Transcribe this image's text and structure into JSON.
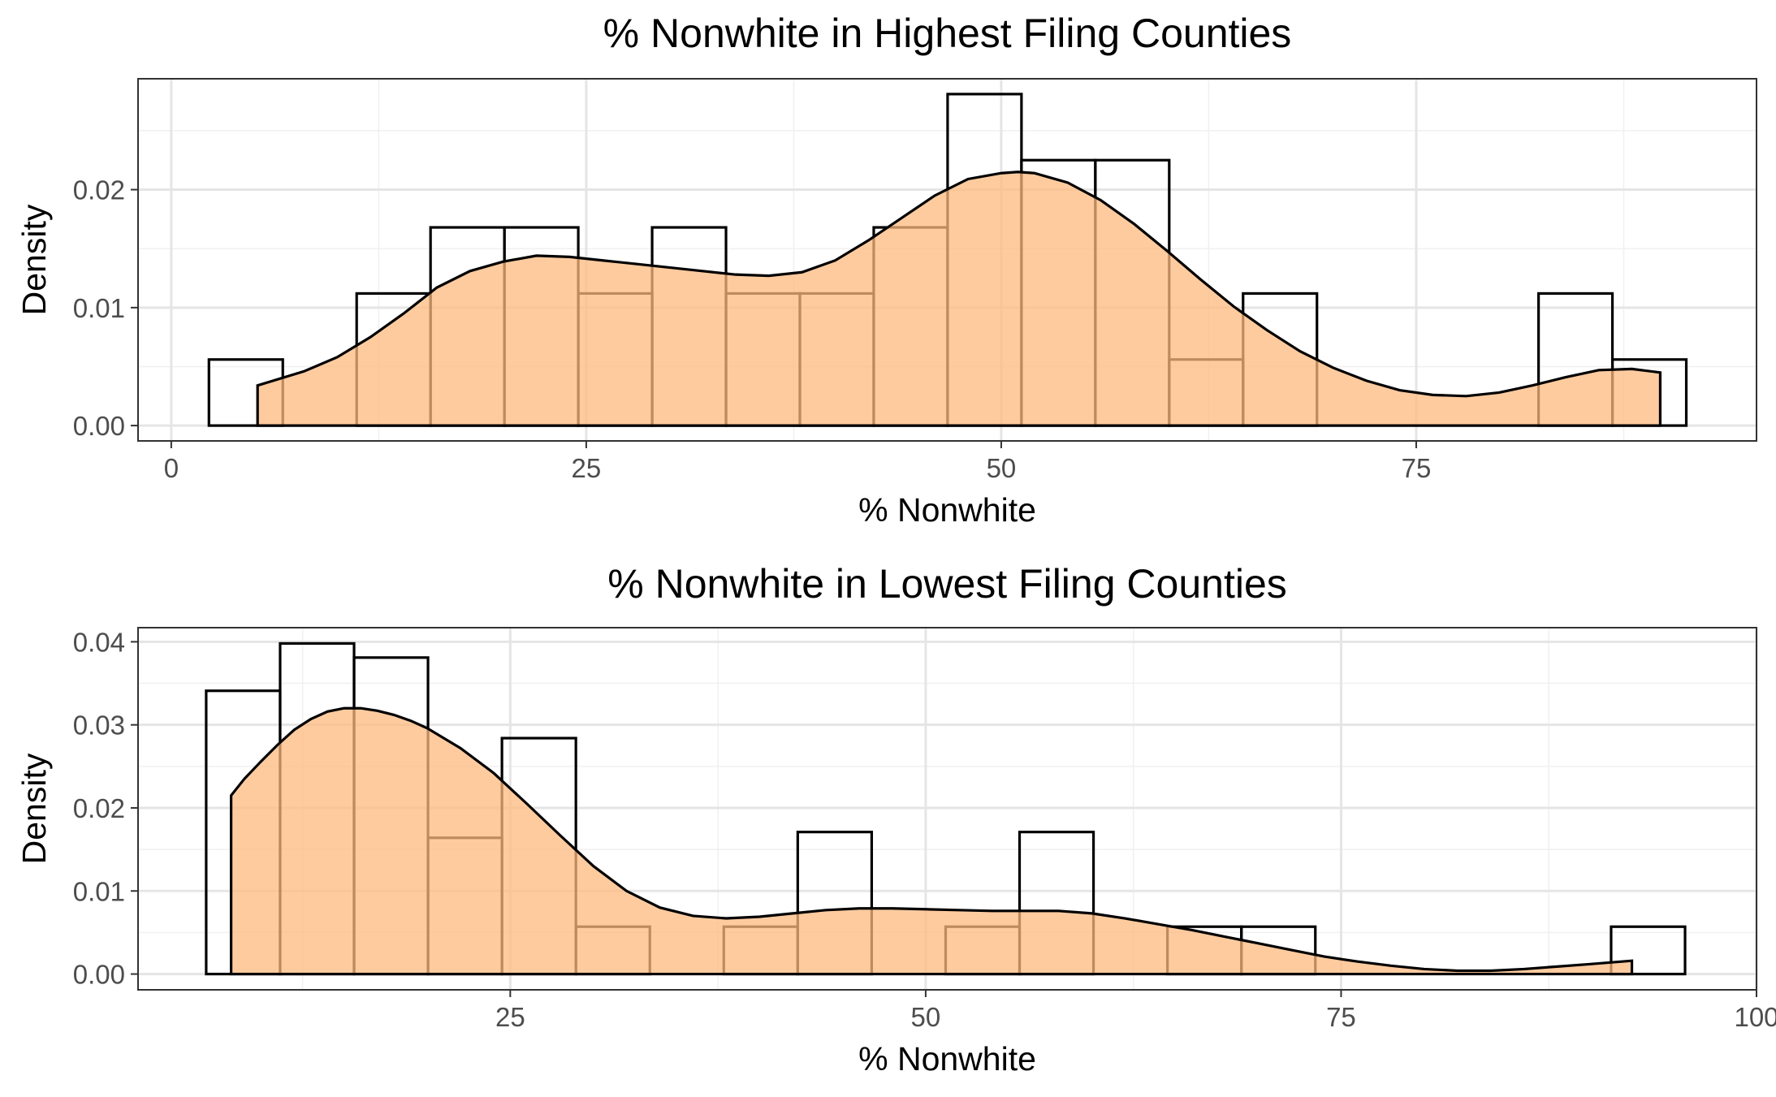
{
  "chart_data": [
    {
      "type": "histogram+density",
      "title": "% Nonwhite in Highest Filing Counties",
      "xlabel": "% Nonwhite",
      "ylabel": "Density",
      "xlim": [
        -2.0,
        95.5
      ],
      "ylim": [
        -0.0013,
        0.0294
      ],
      "xticks": [
        0,
        25,
        50,
        75
      ],
      "xtick_labels": [
        "0",
        "25",
        "50",
        "75"
      ],
      "yticks": [
        0.0,
        0.01,
        0.02
      ],
      "ytick_labels": [
        "0.00",
        "0.01",
        "0.02"
      ],
      "grid": true,
      "bin_width": 4.45,
      "bins": [
        {
          "x0": 2.27,
          "x1": 6.72,
          "density": 0.0056
        },
        {
          "x0": 6.72,
          "x1": 11.17,
          "density": 0.0
        },
        {
          "x0": 11.17,
          "x1": 15.62,
          "density": 0.0112
        },
        {
          "x0": 15.62,
          "x1": 20.07,
          "density": 0.0168
        },
        {
          "x0": 20.07,
          "x1": 24.52,
          "density": 0.0168
        },
        {
          "x0": 24.52,
          "x1": 28.97,
          "density": 0.0112
        },
        {
          "x0": 28.97,
          "x1": 33.42,
          "density": 0.0168
        },
        {
          "x0": 33.42,
          "x1": 37.87,
          "density": 0.0112
        },
        {
          "x0": 37.87,
          "x1": 42.32,
          "density": 0.0112
        },
        {
          "x0": 42.32,
          "x1": 46.77,
          "density": 0.0168
        },
        {
          "x0": 46.77,
          "x1": 51.22,
          "density": 0.0281
        },
        {
          "x0": 51.22,
          "x1": 55.67,
          "density": 0.0225
        },
        {
          "x0": 55.67,
          "x1": 60.12,
          "density": 0.0225
        },
        {
          "x0": 60.12,
          "x1": 64.57,
          "density": 0.0056
        },
        {
          "x0": 64.57,
          "x1": 69.02,
          "density": 0.0112
        },
        {
          "x0": 69.02,
          "x1": 73.47,
          "density": 0.0
        },
        {
          "x0": 73.47,
          "x1": 77.92,
          "density": 0.0
        },
        {
          "x0": 77.92,
          "x1": 82.37,
          "density": 0.0
        },
        {
          "x0": 82.37,
          "x1": 86.82,
          "density": 0.0112
        },
        {
          "x0": 86.82,
          "x1": 91.27,
          "density": 0.0056
        }
      ],
      "density_curve": {
        "x": [
          5.2,
          8,
          10,
          12,
          14,
          16,
          18,
          20,
          22,
          24,
          26,
          28,
          30,
          32,
          34,
          36,
          38,
          40,
          42,
          44,
          46,
          48,
          50,
          51,
          52,
          54,
          56,
          58,
          60,
          62,
          64,
          66,
          68,
          70,
          72,
          74,
          76,
          78,
          80,
          82,
          84,
          86,
          88,
          89.7
        ],
        "y": [
          0.0034,
          0.0046,
          0.0058,
          0.0075,
          0.0095,
          0.0117,
          0.0131,
          0.0139,
          0.0144,
          0.0143,
          0.014,
          0.0137,
          0.0134,
          0.0131,
          0.0128,
          0.0127,
          0.013,
          0.014,
          0.0157,
          0.0176,
          0.0195,
          0.0209,
          0.0214,
          0.0215,
          0.0214,
          0.0206,
          0.0191,
          0.0171,
          0.0148,
          0.0124,
          0.0101,
          0.0081,
          0.0063,
          0.0049,
          0.0038,
          0.003,
          0.0026,
          0.0025,
          0.0028,
          0.0034,
          0.0041,
          0.0047,
          0.0048,
          0.0045
        ]
      }
    },
    {
      "type": "histogram+density",
      "title": "% Nonwhite in Lowest Filing Counties",
      "xlabel": "% Nonwhite",
      "ylabel": "Density",
      "xlim": [
        2.6,
        100.0
      ],
      "ylim": [
        -0.0019,
        0.0417
      ],
      "xticks": [
        25,
        50,
        75,
        100
      ],
      "xtick_labels": [
        "25",
        "50",
        "75",
        "100"
      ],
      "yticks": [
        0.0,
        0.01,
        0.02,
        0.03,
        0.04
      ],
      "ytick_labels": [
        "0.00",
        "0.01",
        "0.02",
        "0.03",
        "0.04"
      ],
      "grid": true,
      "bin_width": 4.45,
      "bins": [
        {
          "x0": 6.7,
          "x1": 11.15,
          "density": 0.0341
        },
        {
          "x0": 11.15,
          "x1": 15.6,
          "density": 0.0398
        },
        {
          "x0": 15.6,
          "x1": 20.05,
          "density": 0.0381
        },
        {
          "x0": 20.05,
          "x1": 24.5,
          "density": 0.0164
        },
        {
          "x0": 24.5,
          "x1": 28.95,
          "density": 0.0284
        },
        {
          "x0": 28.95,
          "x1": 33.4,
          "density": 0.0057
        },
        {
          "x0": 33.4,
          "x1": 37.85,
          "density": 0.0
        },
        {
          "x0": 37.85,
          "x1": 42.3,
          "density": 0.0057
        },
        {
          "x0": 42.3,
          "x1": 46.75,
          "density": 0.0171
        },
        {
          "x0": 46.75,
          "x1": 51.2,
          "density": 0.0
        },
        {
          "x0": 51.2,
          "x1": 55.65,
          "density": 0.0057
        },
        {
          "x0": 55.65,
          "x1": 60.1,
          "density": 0.0171
        },
        {
          "x0": 60.1,
          "x1": 64.55,
          "density": 0.0
        },
        {
          "x0": 64.55,
          "x1": 69.0,
          "density": 0.0057
        },
        {
          "x0": 69.0,
          "x1": 73.45,
          "density": 0.0057
        },
        {
          "x0": 73.45,
          "x1": 77.9,
          "density": 0.0
        },
        {
          "x0": 77.9,
          "x1": 82.35,
          "density": 0.0
        },
        {
          "x0": 82.35,
          "x1": 86.8,
          "density": 0.0
        },
        {
          "x0": 86.8,
          "x1": 91.25,
          "density": 0.0
        },
        {
          "x0": 91.25,
          "x1": 95.7,
          "density": 0.0057
        }
      ],
      "density_curve": {
        "x": [
          8.2,
          9,
          10,
          11,
          12,
          13,
          14,
          15,
          16,
          17,
          18,
          19,
          20,
          22,
          24,
          26,
          28,
          30,
          32,
          34,
          36,
          38,
          40,
          42,
          44,
          46,
          48,
          50,
          52,
          54,
          56,
          58,
          60,
          62,
          64,
          66,
          68,
          70,
          72,
          74,
          76,
          78,
          80,
          82,
          84,
          86,
          88,
          90,
          92.5
        ],
        "y": [
          0.0215,
          0.0235,
          0.0256,
          0.0276,
          0.0294,
          0.0307,
          0.0316,
          0.032,
          0.032,
          0.0317,
          0.0312,
          0.0305,
          0.0296,
          0.0272,
          0.0242,
          0.0205,
          0.0167,
          0.013,
          0.01,
          0.008,
          0.007,
          0.0067,
          0.0069,
          0.0073,
          0.0077,
          0.0079,
          0.0079,
          0.0078,
          0.0077,
          0.0076,
          0.0076,
          0.0076,
          0.0073,
          0.0067,
          0.006,
          0.0053,
          0.0045,
          0.0037,
          0.0029,
          0.0021,
          0.0015,
          0.001,
          0.0006,
          0.0004,
          0.0004,
          0.0006,
          0.0009,
          0.0012,
          0.0016
        ]
      }
    }
  ]
}
